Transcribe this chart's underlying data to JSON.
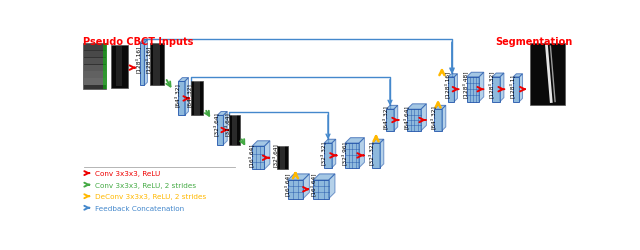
{
  "title_left": "Pseudo CBCT Inputs",
  "title_right": "Segmentation",
  "title_left_color": "#FF0000",
  "title_right_color": "#FF0000",
  "bg_color": "#FFFFFF",
  "legend": [
    {
      "text": "Conv 3x3x3, ReLU",
      "color": "#FF0000"
    },
    {
      "text": "Conv 3x3x3, ReLU, 2 strides",
      "color": "#44AA44"
    },
    {
      "text": "DeConv 3x3x3, ReLU, 2 strides",
      "color": "#FFB800"
    },
    {
      "text": "Feedback Concatenation",
      "color": "#4488CC"
    }
  ],
  "face_color": "#7EB0D9",
  "edge_color": "#2255AA",
  "grid_color": "#2255AA"
}
